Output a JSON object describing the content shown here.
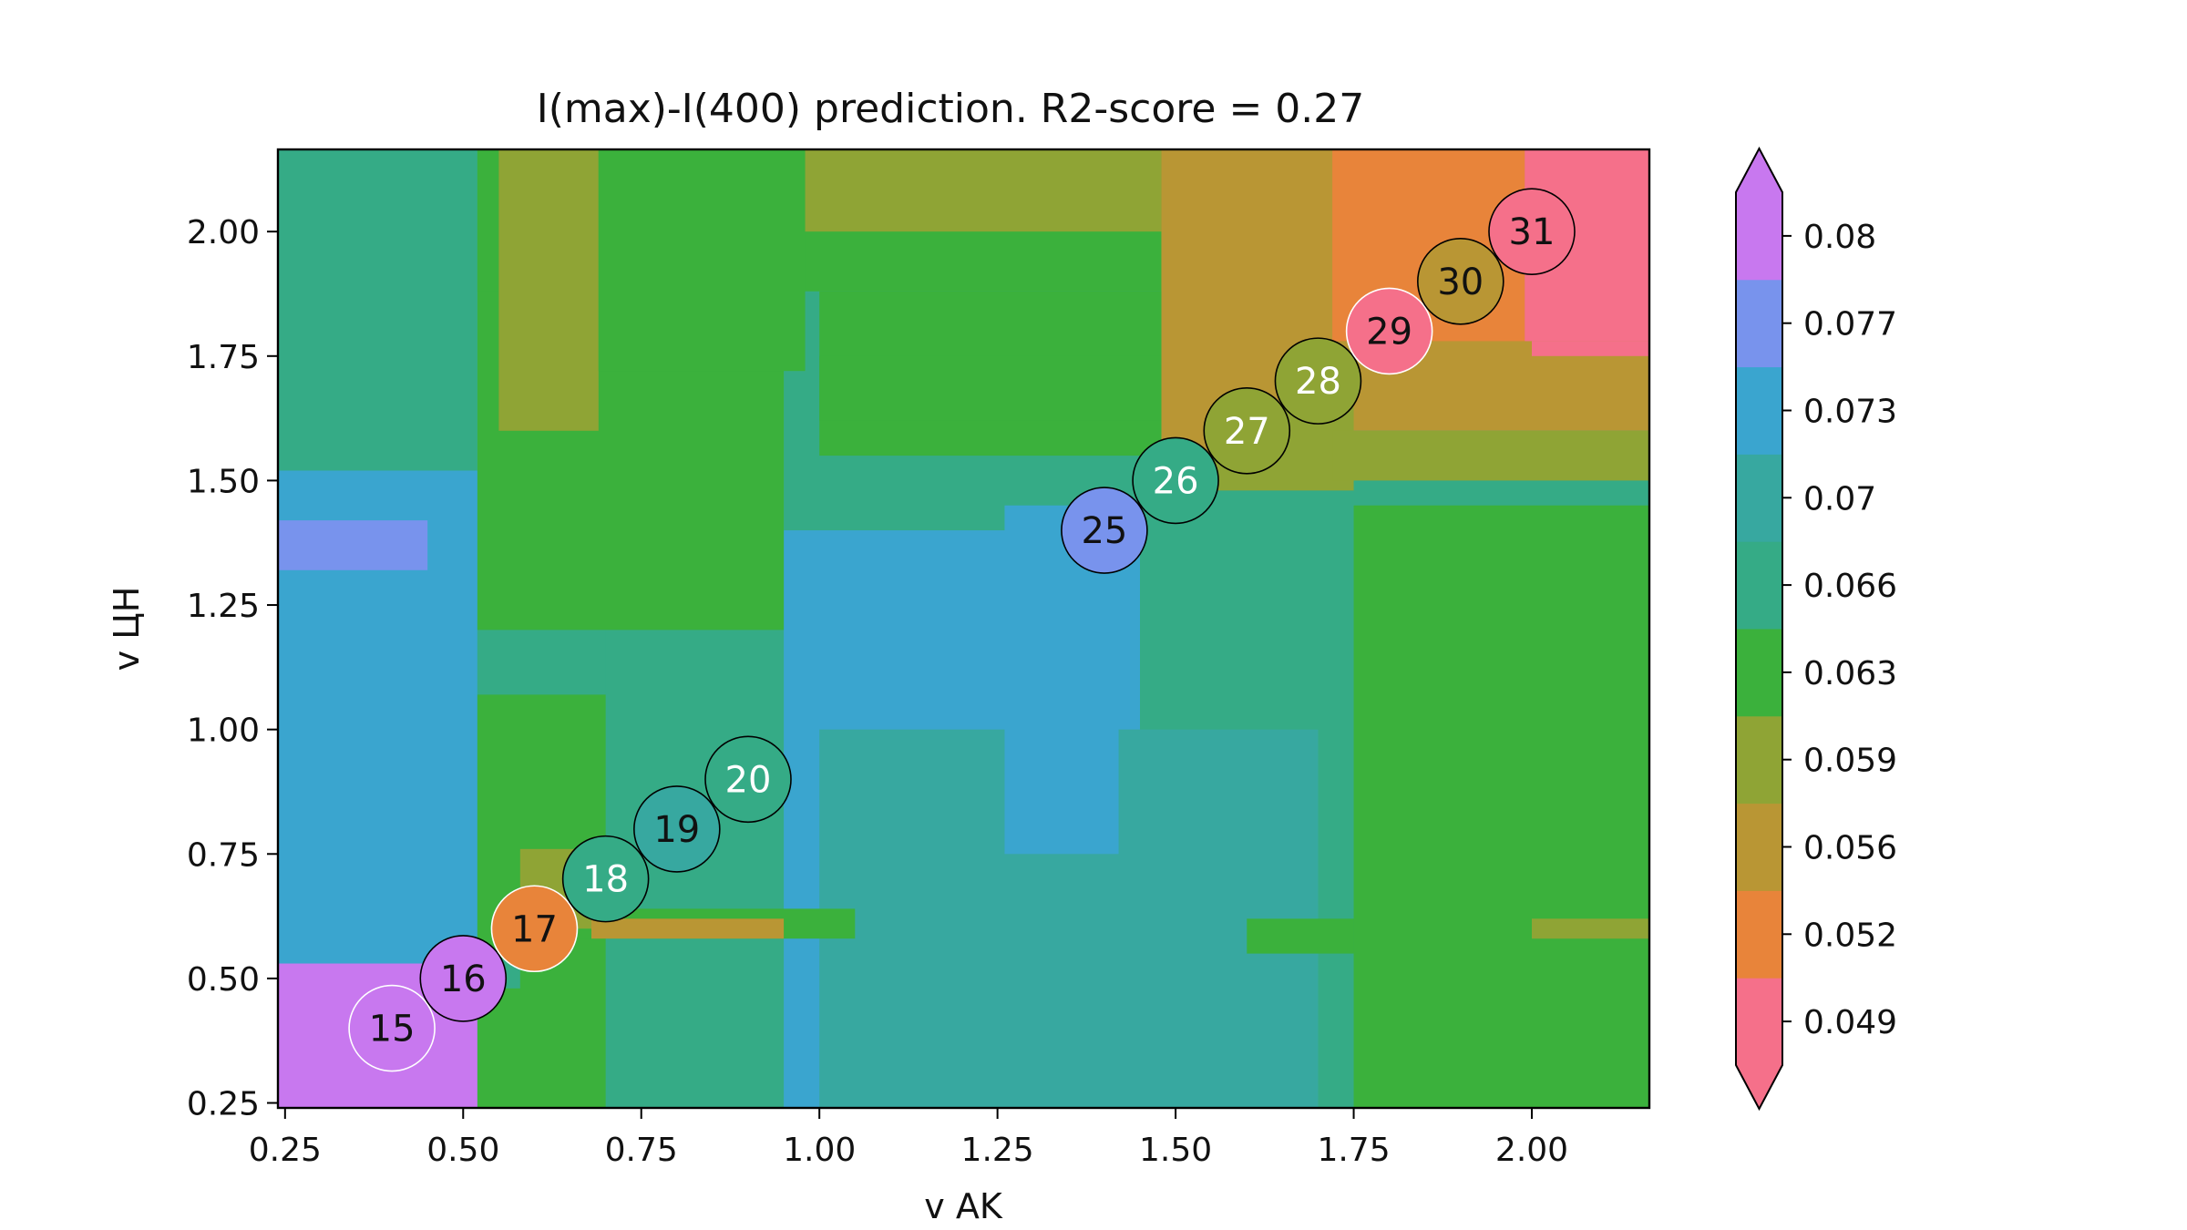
{
  "chart_data": {
    "type": "heatmap",
    "title": "I(max)-I(400) prediction. R2-score = 0.27",
    "xlabel": "v AK",
    "ylabel": "v ЦН",
    "xlim": [
      0.24,
      2.165
    ],
    "ylim": [
      0.24,
      2.165
    ],
    "x_ticks": [
      {
        "value": 0.25,
        "label": "0.25"
      },
      {
        "value": 0.5,
        "label": "0.50"
      },
      {
        "value": 0.75,
        "label": "0.75"
      },
      {
        "value": 1.0,
        "label": "1.00"
      },
      {
        "value": 1.25,
        "label": "1.25"
      },
      {
        "value": 1.5,
        "label": "1.50"
      },
      {
        "value": 1.75,
        "label": "1.75"
      },
      {
        "value": 2.0,
        "label": "2.00"
      }
    ],
    "y_ticks": [
      {
        "value": 0.25,
        "label": "0.25"
      },
      {
        "value": 0.5,
        "label": "0.50"
      },
      {
        "value": 0.75,
        "label": "0.75"
      },
      {
        "value": 1.0,
        "label": "1.00"
      },
      {
        "value": 1.25,
        "label": "1.25"
      },
      {
        "value": 1.5,
        "label": "1.50"
      },
      {
        "value": 1.75,
        "label": "1.75"
      },
      {
        "value": 2.0,
        "label": "2.00"
      }
    ],
    "colorbar": {
      "levels": [
        {
          "value": 0.049,
          "label": "0.049",
          "color": "#f5708a"
        },
        {
          "value": 0.052,
          "label": "0.052",
          "color": "#e8843a"
        },
        {
          "value": 0.056,
          "label": "0.056",
          "color": "#b99634"
        },
        {
          "value": 0.059,
          "label": "0.059",
          "color": "#8fa435"
        },
        {
          "value": 0.063,
          "label": "0.063",
          "color": "#3bb13c"
        },
        {
          "value": 0.066,
          "label": "0.066",
          "color": "#35ab86"
        },
        {
          "value": 0.07,
          "label": "0.07",
          "color": "#37a8a0"
        },
        {
          "value": 0.073,
          "label": "0.073",
          "color": "#3aa5cf"
        },
        {
          "value": 0.077,
          "label": "0.077",
          "color": "#7893ed"
        },
        {
          "value": 0.08,
          "label": "0.08",
          "color": "#c878ef"
        }
      ],
      "extend": "both"
    },
    "regions": [
      {
        "x": [
          0.24,
          2.165
        ],
        "y": [
          0.24,
          2.165
        ],
        "level": 0.066
      },
      {
        "x": [
          0.24,
          0.52
        ],
        "y": [
          0.24,
          1.52
        ],
        "level": 0.073
      },
      {
        "x": [
          0.52,
          0.7
        ],
        "y": [
          0.24,
          1.22
        ],
        "level": 0.066
      },
      {
        "x": [
          0.95,
          1.45
        ],
        "y": [
          0.24,
          1.4
        ],
        "level": 0.073
      },
      {
        "x": [
          1.0,
          1.7
        ],
        "y": [
          0.24,
          1.0
        ],
        "level": 0.07
      },
      {
        "x": [
          1.26,
          1.42
        ],
        "y": [
          0.75,
          1.45
        ],
        "level": 0.073
      },
      {
        "x": [
          0.24,
          0.45
        ],
        "y": [
          1.32,
          1.42
        ],
        "level": 0.077
      },
      {
        "x": [
          0.24,
          0.52
        ],
        "y": [
          0.24,
          0.53
        ],
        "level": 0.08
      },
      {
        "x": [
          0.52,
          0.7
        ],
        "y": [
          0.24,
          1.07
        ],
        "level": 0.063
      },
      {
        "x": [
          0.6,
          1.05
        ],
        "y": [
          0.58,
          0.64
        ],
        "level": 0.063
      },
      {
        "x": [
          0.58,
          0.68
        ],
        "y": [
          0.6,
          0.76
        ],
        "level": 0.059
      },
      {
        "x": [
          0.68,
          0.95
        ],
        "y": [
          0.58,
          0.62
        ],
        "level": 0.056
      },
      {
        "x": [
          0.52,
          0.58
        ],
        "y": [
          0.48,
          0.54
        ],
        "level": 0.066
      },
      {
        "x": [
          0.52,
          0.95
        ],
        "y": [
          1.2,
          2.165
        ],
        "level": 0.063
      },
      {
        "x": [
          0.52,
          1.67
        ],
        "y": [
          1.88,
          2.165
        ],
        "level": 0.063
      },
      {
        "x": [
          0.55,
          0.69
        ],
        "y": [
          1.6,
          2.165
        ],
        "level": 0.059
      },
      {
        "x": [
          0.69,
          0.98
        ],
        "y": [
          1.72,
          2.165
        ],
        "level": 0.063
      },
      {
        "x": [
          0.98,
          1.48
        ],
        "y": [
          2.0,
          2.165
        ],
        "level": 0.059
      },
      {
        "x": [
          1.48,
          1.72
        ],
        "y": [
          1.55,
          2.165
        ],
        "level": 0.056
      },
      {
        "x": [
          1.72,
          2.165
        ],
        "y": [
          1.6,
          2.165
        ],
        "level": 0.056
      },
      {
        "x": [
          1.72,
          1.99
        ],
        "y": [
          1.78,
          2.165
        ],
        "level": 0.052
      },
      {
        "x": [
          1.99,
          2.165
        ],
        "y": [
          1.78,
          2.165
        ],
        "level": 0.049
      },
      {
        "x": [
          2.0,
          2.165
        ],
        "y": [
          1.75,
          1.78
        ],
        "level": 0.049
      },
      {
        "x": [
          1.55,
          1.75
        ],
        "y": [
          1.48,
          1.65
        ],
        "level": 0.059
      },
      {
        "x": [
          1.72,
          2.165
        ],
        "y": [
          1.5,
          1.6
        ],
        "level": 0.059
      },
      {
        "x": [
          1.75,
          2.165
        ],
        "y": [
          0.24,
          1.45
        ],
        "level": 0.063
      },
      {
        "x": [
          1.6,
          1.75
        ],
        "y": [
          0.55,
          0.62
        ],
        "level": 0.063
      },
      {
        "x": [
          2.0,
          2.165
        ],
        "y": [
          0.58,
          0.62
        ],
        "level": 0.059
      },
      {
        "x": [
          1.0,
          1.48
        ],
        "y": [
          1.55,
          1.88
        ],
        "level": 0.063
      },
      {
        "x": [
          1.0,
          1.48
        ],
        "y": [
          1.62,
          1.75
        ],
        "level": 0.063
      }
    ],
    "points": [
      {
        "x": 0.4,
        "y": 0.4,
        "label": "15",
        "level": 0.08,
        "text": "#111111",
        "ring": "#ffffff"
      },
      {
        "x": 0.5,
        "y": 0.5,
        "label": "16",
        "level": 0.08,
        "text": "#111111",
        "ring": "#000000"
      },
      {
        "x": 0.6,
        "y": 0.6,
        "label": "17",
        "level": 0.052,
        "text": "#111111",
        "ring": "#ffffff"
      },
      {
        "x": 0.7,
        "y": 0.7,
        "label": "18",
        "level": 0.066,
        "text": "#ffffff",
        "ring": "#000000"
      },
      {
        "x": 0.8,
        "y": 0.8,
        "label": "19",
        "level": 0.07,
        "text": "#111111",
        "ring": "#000000"
      },
      {
        "x": 0.9,
        "y": 0.9,
        "label": "20",
        "level": 0.066,
        "text": "#ffffff",
        "ring": "#000000"
      },
      {
        "x": 1.4,
        "y": 1.4,
        "label": "25",
        "level": 0.077,
        "text": "#111111",
        "ring": "#000000"
      },
      {
        "x": 1.5,
        "y": 1.5,
        "label": "26",
        "level": 0.066,
        "text": "#ffffff",
        "ring": "#000000"
      },
      {
        "x": 1.6,
        "y": 1.6,
        "label": "27",
        "level": 0.059,
        "text": "#ffffff",
        "ring": "#000000"
      },
      {
        "x": 1.7,
        "y": 1.7,
        "label": "28",
        "level": 0.059,
        "text": "#ffffff",
        "ring": "#000000"
      },
      {
        "x": 1.8,
        "y": 1.8,
        "label": "29",
        "level": 0.049,
        "text": "#111111",
        "ring": "#ffffff"
      },
      {
        "x": 1.9,
        "y": 1.9,
        "label": "30",
        "level": 0.056,
        "text": "#111111",
        "ring": "#000000"
      },
      {
        "x": 2.0,
        "y": 2.0,
        "label": "31",
        "level": 0.049,
        "text": "#111111",
        "ring": "#000000"
      }
    ],
    "grid": false
  }
}
